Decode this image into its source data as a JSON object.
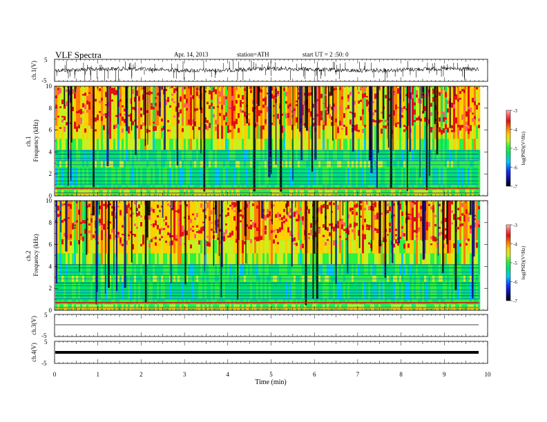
{
  "header": {
    "title": "VLF  Spectra",
    "date": "Apr. 14, 2013",
    "station": "station=ATH",
    "start": "start  UT  =  2  :50: 0"
  },
  "colorbar_label": "log(PSD)(V²/Hz)",
  "colors": {
    "spectrogram_scale": [
      "#000000",
      "#0a0a80",
      "#1030ff",
      "#00c8ff",
      "#00e070",
      "#30f040",
      "#c8f020",
      "#ffd000",
      "#ff8000",
      "#e01010",
      "#ff6060",
      "#ffc0c0"
    ]
  },
  "chart_data": [
    {
      "type": "line",
      "name": "ch1-waveform",
      "ylabel": "ch.1(V)",
      "ylim": [
        -5,
        5
      ],
      "yticks": [
        "5",
        "-5"
      ],
      "xlim": [
        0,
        10
      ]
    },
    {
      "type": "heatmap",
      "name": "ch1-spectrogram",
      "ylabel": "ch.1\nFrequency (kHz)",
      "ylim": [
        0,
        10
      ],
      "yticks": [
        "0",
        "2",
        "4",
        "6",
        "8",
        "10"
      ],
      "xlim": [
        0,
        10
      ],
      "x_data_end": 9.8,
      "colorbar": {
        "range": [
          -7,
          -3
        ],
        "ticks": [
          "-3",
          "-4",
          "-5",
          "-6",
          "-7"
        ],
        "label": "log(PSD)(V²/Hz)"
      }
    },
    {
      "type": "heatmap",
      "name": "ch2-spectrogram",
      "ylabel": "ch.2\nFrequency (kHz)",
      "ylim": [
        0,
        10
      ],
      "yticks": [
        "0",
        "2",
        "4",
        "6",
        "8",
        "10"
      ],
      "xlim": [
        0,
        10
      ],
      "x_data_end": 9.8,
      "colorbar": {
        "range": [
          -7,
          -3
        ],
        "ticks": [
          "-3",
          "-4",
          "-5",
          "-6",
          "-7"
        ],
        "label": "log(PSD)(V²/Hz)"
      }
    },
    {
      "type": "line",
      "name": "ch3-waveform",
      "ylabel": "ch.3(V)",
      "ylim": [
        -5,
        5
      ],
      "yticks": [
        "5",
        "-5"
      ],
      "xlim": [
        0,
        10
      ]
    },
    {
      "type": "line",
      "name": "ch4-waveform",
      "ylabel": "ch.4(V)",
      "ylim": [
        -5,
        5
      ],
      "yticks": [
        "5",
        "-5"
      ],
      "xlim": [
        0,
        10
      ],
      "xlabel": "Time  (min)",
      "xticks": [
        "0",
        "1",
        "2",
        "3",
        "4",
        "5",
        "6",
        "7",
        "8",
        "9",
        "10"
      ]
    }
  ]
}
